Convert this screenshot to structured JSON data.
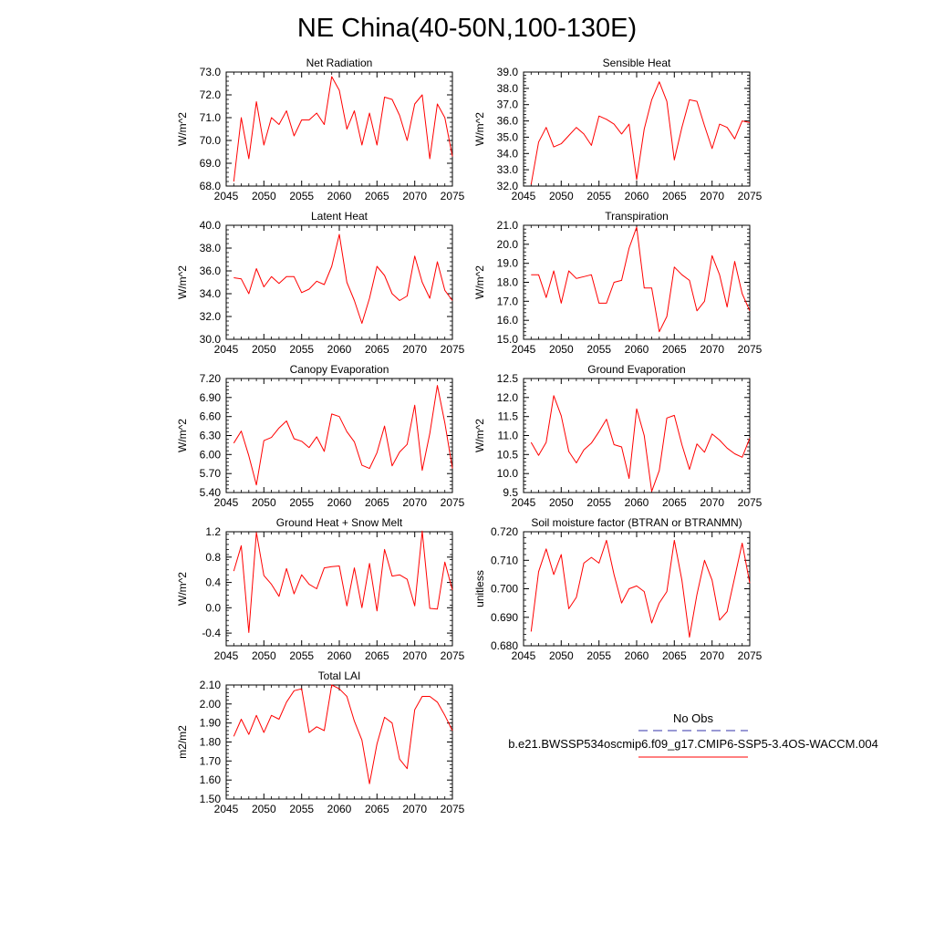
{
  "figure": {
    "title": "NE China(40-50N,100-130E)"
  },
  "legend": {
    "obs_label": "No Obs",
    "model_label": "b.e21.BWSSP534oscmip6.f09_g17.CMIP6-SSP5-3.4OS-WACCM.004",
    "obs_color": "#3333aa",
    "model_color": "#ff0000"
  },
  "chart_data": [
    {
      "type": "line",
      "title": "Net Radiation",
      "ylabel": "W/m^2",
      "xlim": [
        2045,
        2075
      ],
      "ylim": [
        68.0,
        73.0
      ],
      "yticks": [
        68.0,
        69.0,
        70.0,
        71.0,
        72.0,
        73.0
      ],
      "yticklabels": [
        "68.0",
        "69.0",
        "70.0",
        "71.0",
        "72.0",
        "73.0"
      ],
      "xticks": [
        2045,
        2050,
        2055,
        2060,
        2065,
        2070,
        2075
      ],
      "xticklabels": [
        "2045",
        "2050",
        "2055",
        "2060",
        "2065",
        "2070",
        "2075"
      ],
      "series": [
        {
          "color": "#ff0000",
          "x": [
            2046,
            2047,
            2048,
            2049,
            2050,
            2051,
            2052,
            2053,
            2054,
            2055,
            2056,
            2057,
            2058,
            2059,
            2060,
            2061,
            2062,
            2063,
            2064,
            2065,
            2066,
            2067,
            2068,
            2069,
            2070,
            2071,
            2072,
            2073,
            2074,
            2075
          ],
          "values": [
            68.2,
            71.0,
            69.2,
            71.7,
            69.8,
            71.0,
            70.7,
            71.3,
            70.2,
            70.9,
            70.9,
            71.2,
            70.7,
            72.8,
            72.2,
            70.5,
            71.3,
            69.8,
            71.2,
            69.8,
            71.9,
            71.8,
            71.1,
            70.0,
            71.6,
            72.0,
            69.2,
            71.6,
            71.0,
            69.3
          ]
        }
      ]
    },
    {
      "type": "line",
      "title": "Sensible Heat",
      "ylabel": "W/m^2",
      "xlim": [
        2045,
        2075
      ],
      "ylim": [
        32.0,
        39.0
      ],
      "yticks": [
        32.0,
        33.0,
        34.0,
        35.0,
        36.0,
        37.0,
        38.0,
        39.0
      ],
      "yticklabels": [
        "32.0",
        "33.0",
        "34.0",
        "35.0",
        "36.0",
        "37.0",
        "38.0",
        "39.0"
      ],
      "xticks": [
        2045,
        2050,
        2055,
        2060,
        2065,
        2070,
        2075
      ],
      "xticklabels": [
        "2045",
        "2050",
        "2055",
        "2060",
        "2065",
        "2070",
        "2075"
      ],
      "series": [
        {
          "color": "#ff0000",
          "x": [
            2046,
            2047,
            2048,
            2049,
            2050,
            2051,
            2052,
            2053,
            2054,
            2055,
            2056,
            2057,
            2058,
            2059,
            2060,
            2061,
            2062,
            2063,
            2064,
            2065,
            2066,
            2067,
            2068,
            2069,
            2070,
            2071,
            2072,
            2073,
            2074,
            2075
          ],
          "values": [
            32.1,
            34.7,
            35.6,
            34.4,
            34.6,
            35.1,
            35.6,
            35.2,
            34.5,
            36.3,
            36.1,
            35.8,
            35.2,
            35.8,
            32.4,
            35.5,
            37.3,
            38.4,
            37.2,
            33.6,
            35.6,
            37.3,
            37.2,
            35.7,
            34.3,
            35.8,
            35.6,
            34.9,
            36.0,
            35.9
          ]
        }
      ]
    },
    {
      "type": "line",
      "title": "Latent Heat",
      "ylabel": "W/m^2",
      "xlim": [
        2045,
        2075
      ],
      "ylim": [
        30.0,
        40.0
      ],
      "yticks": [
        30.0,
        32.0,
        34.0,
        36.0,
        38.0,
        40.0
      ],
      "yticklabels": [
        "30.0",
        "32.0",
        "34.0",
        "36.0",
        "38.0",
        "40.0"
      ],
      "xticks": [
        2045,
        2050,
        2055,
        2060,
        2065,
        2070,
        2075
      ],
      "xticklabels": [
        "2045",
        "2050",
        "2055",
        "2060",
        "2065",
        "2070",
        "2075"
      ],
      "series": [
        {
          "color": "#ff0000",
          "x": [
            2046,
            2047,
            2048,
            2049,
            2050,
            2051,
            2052,
            2053,
            2054,
            2055,
            2056,
            2057,
            2058,
            2059,
            2060,
            2061,
            2062,
            2063,
            2064,
            2065,
            2066,
            2067,
            2068,
            2069,
            2070,
            2071,
            2072,
            2073,
            2074,
            2075
          ],
          "values": [
            35.4,
            35.3,
            34.0,
            36.2,
            34.6,
            35.5,
            34.9,
            35.5,
            35.5,
            34.1,
            34.4,
            35.1,
            34.8,
            36.4,
            39.2,
            35.0,
            33.4,
            31.4,
            33.6,
            36.4,
            35.6,
            34.0,
            33.4,
            33.8,
            37.3,
            35.0,
            33.6,
            36.8,
            34.3,
            33.4
          ]
        }
      ]
    },
    {
      "type": "line",
      "title": "Transpiration",
      "ylabel": "W/m^2",
      "xlim": [
        2045,
        2075
      ],
      "ylim": [
        15.0,
        21.0
      ],
      "yticks": [
        15.0,
        16.0,
        17.0,
        18.0,
        19.0,
        20.0,
        21.0
      ],
      "yticklabels": [
        "15.0",
        "16.0",
        "17.0",
        "18.0",
        "19.0",
        "20.0",
        "21.0"
      ],
      "xticks": [
        2045,
        2050,
        2055,
        2060,
        2065,
        2070,
        2075
      ],
      "xticklabels": [
        "2045",
        "2050",
        "2055",
        "2060",
        "2065",
        "2070",
        "2075"
      ],
      "series": [
        {
          "color": "#ff0000",
          "x": [
            2046,
            2047,
            2048,
            2049,
            2050,
            2051,
            2052,
            2053,
            2054,
            2055,
            2056,
            2057,
            2058,
            2059,
            2060,
            2061,
            2062,
            2063,
            2064,
            2065,
            2066,
            2067,
            2068,
            2069,
            2070,
            2071,
            2072,
            2073,
            2074,
            2075
          ],
          "values": [
            18.4,
            18.4,
            17.2,
            18.6,
            16.9,
            18.6,
            18.2,
            18.3,
            18.4,
            16.9,
            16.9,
            18.0,
            18.1,
            19.8,
            20.9,
            17.7,
            17.7,
            15.4,
            16.2,
            18.8,
            18.4,
            18.1,
            16.5,
            17.0,
            19.4,
            18.4,
            16.7,
            19.1,
            17.4,
            16.5
          ]
        }
      ]
    },
    {
      "type": "line",
      "title": "Canopy Evaporation",
      "ylabel": "W/m^2",
      "xlim": [
        2045,
        2075
      ],
      "ylim": [
        5.4,
        7.2
      ],
      "yticks": [
        5.4,
        5.7,
        6.0,
        6.3,
        6.6,
        6.9,
        7.2
      ],
      "yticklabels": [
        "5.40",
        "5.70",
        "6.00",
        "6.30",
        "6.60",
        "6.90",
        "7.20"
      ],
      "xticks": [
        2045,
        2050,
        2055,
        2060,
        2065,
        2070,
        2075
      ],
      "xticklabels": [
        "2045",
        "2050",
        "2055",
        "2060",
        "2065",
        "2070",
        "2075"
      ],
      "series": [
        {
          "color": "#ff0000",
          "x": [
            2046,
            2047,
            2048,
            2049,
            2050,
            2051,
            2052,
            2053,
            2054,
            2055,
            2056,
            2057,
            2058,
            2059,
            2060,
            2061,
            2062,
            2063,
            2064,
            2065,
            2066,
            2067,
            2068,
            2069,
            2070,
            2071,
            2072,
            2073,
            2074,
            2075
          ],
          "values": [
            6.18,
            6.37,
            5.98,
            5.52,
            6.22,
            6.27,
            6.42,
            6.53,
            6.25,
            6.21,
            6.11,
            6.28,
            6.05,
            6.64,
            6.6,
            6.36,
            6.2,
            5.83,
            5.78,
            6.03,
            6.45,
            5.82,
            6.04,
            6.16,
            6.78,
            5.75,
            6.33,
            7.09,
            6.5,
            5.78
          ]
        }
      ]
    },
    {
      "type": "line",
      "title": "Ground Evaporation",
      "ylabel": "W/m^2",
      "xlim": [
        2045,
        2075
      ],
      "ylim": [
        9.5,
        12.5
      ],
      "yticks": [
        9.5,
        10.0,
        10.5,
        11.0,
        11.5,
        12.0,
        12.5
      ],
      "yticklabels": [
        "9.5",
        "10.0",
        "10.5",
        "11.0",
        "11.5",
        "12.0",
        "12.5"
      ],
      "xticks": [
        2045,
        2050,
        2055,
        2060,
        2065,
        2070,
        2075
      ],
      "xticklabels": [
        "2045",
        "2050",
        "2055",
        "2060",
        "2065",
        "2070",
        "2075"
      ],
      "series": [
        {
          "color": "#ff0000",
          "x": [
            2046,
            2047,
            2048,
            2049,
            2050,
            2051,
            2052,
            2053,
            2054,
            2055,
            2056,
            2057,
            2058,
            2059,
            2060,
            2061,
            2062,
            2063,
            2064,
            2065,
            2066,
            2067,
            2068,
            2069,
            2070,
            2071,
            2072,
            2073,
            2074,
            2075
          ],
          "values": [
            10.82,
            10.48,
            10.82,
            12.05,
            11.52,
            10.58,
            10.28,
            10.62,
            10.8,
            11.1,
            11.43,
            10.76,
            10.7,
            9.87,
            11.7,
            11.0,
            9.53,
            10.08,
            11.46,
            11.53,
            10.76,
            10.11,
            10.78,
            10.56,
            11.04,
            10.88,
            10.67,
            10.52,
            10.43,
            10.93
          ]
        }
      ]
    },
    {
      "type": "line",
      "title": "Ground Heat + Snow Melt",
      "ylabel": "W/m^2",
      "xlim": [
        2045,
        2075
      ],
      "ylim": [
        -0.6,
        1.2
      ],
      "yticks": [
        -0.4,
        0.0,
        0.4,
        0.8,
        1.2
      ],
      "yticklabels": [
        "-0.4",
        "0.0",
        "0.4",
        "0.8",
        "1.2"
      ],
      "xticks": [
        2045,
        2050,
        2055,
        2060,
        2065,
        2070,
        2075
      ],
      "xticklabels": [
        "2045",
        "2050",
        "2055",
        "2060",
        "2065",
        "2070",
        "2075"
      ],
      "series": [
        {
          "color": "#ff0000",
          "x": [
            2046,
            2047,
            2048,
            2049,
            2050,
            2051,
            2052,
            2053,
            2054,
            2055,
            2056,
            2057,
            2058,
            2059,
            2060,
            2061,
            2062,
            2063,
            2064,
            2065,
            2066,
            2067,
            2068,
            2069,
            2070,
            2071,
            2072,
            2073,
            2074,
            2075
          ],
          "values": [
            0.58,
            0.98,
            -0.39,
            1.19,
            0.51,
            0.37,
            0.18,
            0.62,
            0.22,
            0.52,
            0.37,
            0.3,
            0.63,
            0.65,
            0.66,
            0.03,
            0.63,
            0.0,
            0.7,
            -0.05,
            0.92,
            0.5,
            0.52,
            0.45,
            0.03,
            1.21,
            -0.01,
            -0.02,
            0.72,
            0.28
          ]
        }
      ]
    },
    {
      "type": "line",
      "title": "Soil moisture factor (BTRAN or BTRANMN)",
      "ylabel": "unitless",
      "xlim": [
        2045,
        2075
      ],
      "ylim": [
        0.68,
        0.72
      ],
      "yticks": [
        0.68,
        0.69,
        0.7,
        0.71,
        0.72
      ],
      "yticklabels": [
        "0.680",
        "0.690",
        "0.700",
        "0.710",
        "0.720"
      ],
      "xticks": [
        2045,
        2050,
        2055,
        2060,
        2065,
        2070,
        2075
      ],
      "xticklabels": [
        "2045",
        "2050",
        "2055",
        "2060",
        "2065",
        "2070",
        "2075"
      ],
      "series": [
        {
          "color": "#ff0000",
          "x": [
            2046,
            2047,
            2048,
            2049,
            2050,
            2051,
            2052,
            2053,
            2054,
            2055,
            2056,
            2057,
            2058,
            2059,
            2060,
            2061,
            2062,
            2063,
            2064,
            2065,
            2066,
            2067,
            2068,
            2069,
            2070,
            2071,
            2072,
            2073,
            2074,
            2075
          ],
          "values": [
            0.685,
            0.706,
            0.714,
            0.705,
            0.712,
            0.693,
            0.697,
            0.709,
            0.711,
            0.709,
            0.717,
            0.705,
            0.695,
            0.7,
            0.701,
            0.699,
            0.688,
            0.695,
            0.699,
            0.717,
            0.703,
            0.683,
            0.698,
            0.71,
            0.703,
            0.689,
            0.692,
            0.704,
            0.716,
            0.702
          ]
        }
      ]
    },
    {
      "type": "line",
      "title": "Total LAI",
      "ylabel": "m2/m2",
      "xlim": [
        2045,
        2075
      ],
      "ylim": [
        1.5,
        2.1
      ],
      "yticks": [
        1.5,
        1.6,
        1.7,
        1.8,
        1.9,
        2.0,
        2.1
      ],
      "yticklabels": [
        "1.50",
        "1.60",
        "1.70",
        "1.80",
        "1.90",
        "2.00",
        "2.10"
      ],
      "xticks": [
        2045,
        2050,
        2055,
        2060,
        2065,
        2070,
        2075
      ],
      "xticklabels": [
        "2045",
        "2050",
        "2055",
        "2060",
        "2065",
        "2070",
        "2075"
      ],
      "series": [
        {
          "color": "#ff0000",
          "x": [
            2046,
            2047,
            2048,
            2049,
            2050,
            2051,
            2052,
            2053,
            2054,
            2055,
            2056,
            2057,
            2058,
            2059,
            2060,
            2061,
            2062,
            2063,
            2064,
            2065,
            2066,
            2067,
            2068,
            2069,
            2070,
            2071,
            2072,
            2073,
            2074,
            2075
          ],
          "values": [
            1.83,
            1.92,
            1.84,
            1.94,
            1.85,
            1.94,
            1.92,
            2.01,
            2.07,
            2.08,
            1.85,
            1.88,
            1.86,
            2.1,
            2.08,
            2.04,
            1.91,
            1.81,
            1.58,
            1.79,
            1.93,
            1.9,
            1.71,
            1.66,
            1.97,
            2.04,
            2.04,
            2.01,
            1.94,
            1.86
          ]
        }
      ]
    }
  ]
}
